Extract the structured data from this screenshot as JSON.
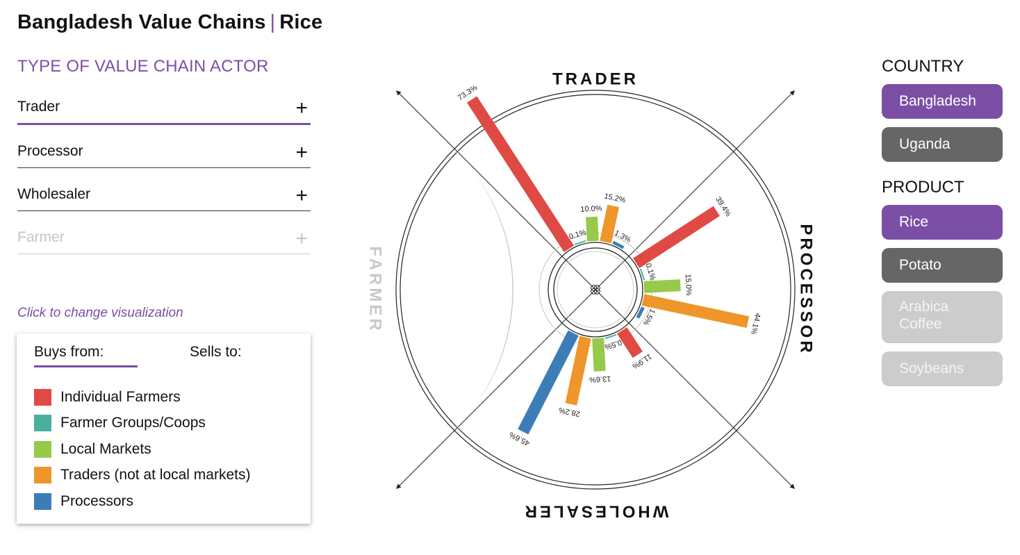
{
  "header": {
    "title_main": "Bangladesh Value Chains",
    "separator": "|",
    "title_product": "Rice"
  },
  "actor_panel": {
    "heading": "TYPE OF VALUE CHAIN ACTOR",
    "items": [
      {
        "label": "Trader",
        "icon": "plus-icon",
        "state": "active"
      },
      {
        "label": "Processor",
        "icon": "plus-icon",
        "state": "normal"
      },
      {
        "label": "Wholesaler",
        "icon": "plus-icon",
        "state": "normal"
      },
      {
        "label": "Farmer",
        "icon": "plus-icon",
        "state": "disabled"
      }
    ],
    "plus_symbol": "+"
  },
  "hint": "Click to change visualization",
  "legend": {
    "tabs": [
      {
        "label": "Buys from:",
        "active": true
      },
      {
        "label": "Sells to:",
        "active": false
      }
    ],
    "items": [
      {
        "label": "Individual Farmers",
        "color": "#e04a44"
      },
      {
        "label": "Farmer Groups/Coops",
        "color": "#4ab09d"
      },
      {
        "label": "Local Markets",
        "color": "#97c94a"
      },
      {
        "label": "Traders (not at local markets)",
        "color": "#ee9629"
      },
      {
        "label": "Processors",
        "color": "#3c7db8"
      }
    ]
  },
  "filters": {
    "country_heading": "COUNTRY",
    "countries": [
      {
        "label": "Bangladesh",
        "state": "selected"
      },
      {
        "label": "Uganda",
        "state": "normal"
      }
    ],
    "product_heading": "PRODUCT",
    "products": [
      {
        "label": "Rice",
        "state": "selected"
      },
      {
        "label": "Potato",
        "state": "normal"
      },
      {
        "label": "Arabica Coffee",
        "state": "disabled"
      },
      {
        "label": "Soybeans",
        "state": "disabled"
      }
    ]
  },
  "chart_data": {
    "type": "radial-bar",
    "axes": [
      {
        "label": "TRADER",
        "active": true
      },
      {
        "label": "PROCESSOR",
        "active": true
      },
      {
        "label": "WHOLESALER",
        "active": true
      },
      {
        "label": "FARMER",
        "active": false
      }
    ],
    "series_colors": {
      "Individual Farmers": "#e04a44",
      "Local Markets": "#97c94a",
      "Traders (not at local markets)": "#ee9629",
      "Processors": "#3c7db8"
    },
    "groups": [
      {
        "actor": "TRADER",
        "bars": [
          {
            "source": "Individual Farmers",
            "value": 73.3,
            "label": "73.3%"
          },
          {
            "source": "Farmer Groups/Coops",
            "value": 0.1,
            "label": "0.1%"
          },
          {
            "source": "Local Markets",
            "value": 10.0,
            "label": "10.0%"
          },
          {
            "source": "Traders (not at local markets)",
            "value": 15.2,
            "label": "15.2%"
          },
          {
            "source": "Processors",
            "value": 1.3,
            "label": "1.3%"
          }
        ]
      },
      {
        "actor": "PROCESSOR",
        "bars": [
          {
            "source": "Individual Farmers",
            "value": 39.4,
            "label": "39.4%"
          },
          {
            "source": "Farmer Groups/Coops",
            "value": 0.1,
            "label": "0.1%"
          },
          {
            "source": "Local Markets",
            "value": 15.0,
            "label": "15.0%"
          },
          {
            "source": "Traders (not at local markets)",
            "value": 44.1,
            "label": "44.1%"
          },
          {
            "source": "Processors",
            "value": 1.5,
            "label": "1.5%"
          }
        ]
      },
      {
        "actor": "WHOLESALER",
        "bars": [
          {
            "source": "Individual Farmers",
            "value": 11.9,
            "label": "11.9%"
          },
          {
            "source": "Farmer Groups/Coops",
            "value": 0.5,
            "label": "0.5%"
          },
          {
            "source": "Local Markets",
            "value": 13.6,
            "label": "13.6%"
          },
          {
            "source": "Traders (not at local markets)",
            "value": 28.2,
            "label": "28.2%"
          },
          {
            "source": "Processors",
            "value": 45.6,
            "label": "45.6%"
          }
        ]
      }
    ]
  }
}
